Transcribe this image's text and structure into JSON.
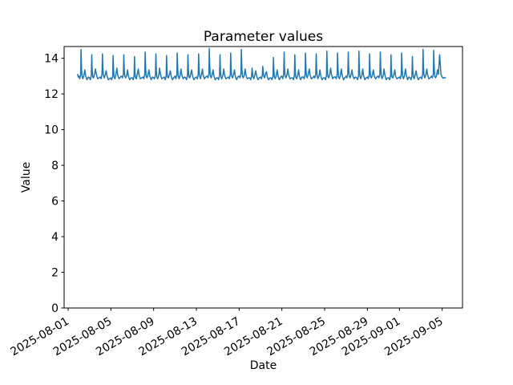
{
  "chart_data": {
    "type": "line",
    "title": "Parameter values",
    "line_color": "#1f77b4",
    "background_color": "#ffffff",
    "grid": false,
    "legend": false,
    "x_axis": {
      "label": "Date",
      "tick_labels": [
        "2025-08-01",
        "2025-08-05",
        "2025-08-09",
        "2025-08-13",
        "2025-08-17",
        "2025-08-21",
        "2025-08-25",
        "2025-08-29",
        "2025-09-01",
        "2025-09-05"
      ],
      "tick_day_offsets": [
        0,
        4,
        8,
        12,
        16,
        20,
        24,
        28,
        31,
        35
      ],
      "lim_days": [
        -0.375,
        36.9
      ],
      "tick_label_rotation_deg": 30
    },
    "y_axis": {
      "label": "Value",
      "ticks": [
        0,
        2,
        4,
        6,
        8,
        10,
        12,
        14
      ],
      "lim": [
        0,
        14.66
      ]
    },
    "series": {
      "t_unit": "days since 2025-08-01 00:00",
      "value_range": [
        12.75,
        14.55
      ],
      "pattern": "daily cycle: sharp morning peak ~14.1-14.55 over ~12.8-13.1 baseline with small evening bump; reduced peaks ~13.5 on days 17-18",
      "lead_points": [
        [
          0.9,
          13.1
        ],
        [
          0.94,
          12.95
        ]
      ],
      "frac_grid": [
        0.0,
        0.08,
        0.17,
        0.21,
        0.25,
        0.3,
        0.38,
        0.48,
        0.56,
        0.64,
        0.76,
        0.88
      ],
      "day_values": [
        [
          13.0,
          12.85,
          13.1,
          14.5,
          13.45,
          13.0,
          12.85,
          13.05,
          13.35,
          13.0,
          12.8,
          12.95
        ],
        [
          12.9,
          12.8,
          13.05,
          14.2,
          13.4,
          12.95,
          12.9,
          13.15,
          13.4,
          13.1,
          12.85,
          12.9
        ],
        [
          12.95,
          12.85,
          13.15,
          14.25,
          13.5,
          13.05,
          12.9,
          13.1,
          13.3,
          13.0,
          12.8,
          12.85
        ],
        [
          12.9,
          12.8,
          13.0,
          14.15,
          13.35,
          12.95,
          12.85,
          13.1,
          13.45,
          13.05,
          12.85,
          12.95
        ],
        [
          13.0,
          12.9,
          13.1,
          14.2,
          13.4,
          13.0,
          12.9,
          13.05,
          13.35,
          13.0,
          12.8,
          12.9
        ],
        [
          12.9,
          12.8,
          13.05,
          14.1,
          13.3,
          12.9,
          12.85,
          13.15,
          13.4,
          13.05,
          12.85,
          12.9
        ],
        [
          12.95,
          12.85,
          13.1,
          14.35,
          13.5,
          13.0,
          12.9,
          13.1,
          13.35,
          13.0,
          12.8,
          12.95
        ],
        [
          12.9,
          12.85,
          13.05,
          14.25,
          13.4,
          12.95,
          12.85,
          13.05,
          13.45,
          13.1,
          12.85,
          12.9
        ],
        [
          12.95,
          12.8,
          13.0,
          14.15,
          13.35,
          12.95,
          12.9,
          13.1,
          13.3,
          13.0,
          12.8,
          12.9
        ],
        [
          13.0,
          12.85,
          13.1,
          14.3,
          13.45,
          13.0,
          12.85,
          13.05,
          13.4,
          13.05,
          12.85,
          12.95
        ],
        [
          12.9,
          12.8,
          13.05,
          14.2,
          13.4,
          12.95,
          12.9,
          13.15,
          13.35,
          13.0,
          12.8,
          12.9
        ],
        [
          12.95,
          12.85,
          13.1,
          14.25,
          13.45,
          13.0,
          12.85,
          13.1,
          13.4,
          13.05,
          12.85,
          12.95
        ],
        [
          13.0,
          12.9,
          13.15,
          14.55,
          13.55,
          13.05,
          12.9,
          13.1,
          13.35,
          13.0,
          12.8,
          12.9
        ],
        [
          12.9,
          12.8,
          13.05,
          14.2,
          13.4,
          12.95,
          12.85,
          13.05,
          13.4,
          13.05,
          12.85,
          12.9
        ],
        [
          12.95,
          12.85,
          13.1,
          14.3,
          13.45,
          13.0,
          12.9,
          13.1,
          13.35,
          13.0,
          12.8,
          12.95
        ],
        [
          13.0,
          12.9,
          13.15,
          14.5,
          13.5,
          13.05,
          12.9,
          13.05,
          13.4,
          13.05,
          12.85,
          12.9
        ],
        [
          12.9,
          12.8,
          13.0,
          13.45,
          13.25,
          12.95,
          12.85,
          13.1,
          13.3,
          13.0,
          12.8,
          12.9
        ],
        [
          12.95,
          12.85,
          13.05,
          13.55,
          13.3,
          13.0,
          12.9,
          13.15,
          13.25,
          12.95,
          12.8,
          12.9
        ],
        [
          12.9,
          12.8,
          13.0,
          14.05,
          13.35,
          12.95,
          12.85,
          13.05,
          13.35,
          13.0,
          12.8,
          12.95
        ],
        [
          13.0,
          12.85,
          13.1,
          14.35,
          13.45,
          13.0,
          12.9,
          13.1,
          13.4,
          13.05,
          12.85,
          12.9
        ],
        [
          12.9,
          12.8,
          13.05,
          14.2,
          13.4,
          12.95,
          12.85,
          13.05,
          13.35,
          13.0,
          12.8,
          12.95
        ],
        [
          12.95,
          12.85,
          13.1,
          14.3,
          13.45,
          13.0,
          12.9,
          13.15,
          13.4,
          13.05,
          12.85,
          12.9
        ],
        [
          13.0,
          12.9,
          13.1,
          14.25,
          13.4,
          13.0,
          12.85,
          13.05,
          13.35,
          13.0,
          12.8,
          12.9
        ],
        [
          12.9,
          12.8,
          13.05,
          14.4,
          13.5,
          13.0,
          12.9,
          13.1,
          13.45,
          13.1,
          12.85,
          12.95
        ],
        [
          12.95,
          12.85,
          13.1,
          14.3,
          13.45,
          12.95,
          12.85,
          13.05,
          13.4,
          13.05,
          12.8,
          12.9
        ],
        [
          13.0,
          12.9,
          13.15,
          14.35,
          13.5,
          13.0,
          12.9,
          13.1,
          13.35,
          13.0,
          12.85,
          12.95
        ],
        [
          12.9,
          12.8,
          13.05,
          14.4,
          13.45,
          13.0,
          12.85,
          13.05,
          13.4,
          13.05,
          12.8,
          12.9
        ],
        [
          12.95,
          12.85,
          13.1,
          14.25,
          13.4,
          12.95,
          12.9,
          13.1,
          13.35,
          13.0,
          12.85,
          12.95
        ],
        [
          13.0,
          12.9,
          13.1,
          14.35,
          13.5,
          13.0,
          12.85,
          13.05,
          13.4,
          13.05,
          12.8,
          12.9
        ],
        [
          12.9,
          12.8,
          13.05,
          14.2,
          13.4,
          12.95,
          12.9,
          13.1,
          13.35,
          13.0,
          12.85,
          12.9
        ],
        [
          12.95,
          12.85,
          13.1,
          14.3,
          13.45,
          13.0,
          12.85,
          13.05,
          13.4,
          13.05,
          12.8,
          12.95
        ],
        [
          12.9,
          12.8,
          13.0,
          14.1,
          13.35,
          12.95,
          12.85,
          13.1,
          13.3,
          13.0,
          12.8,
          12.9
        ],
        [
          12.95,
          12.85,
          13.1,
          14.5,
          13.5,
          13.05,
          12.9,
          13.1,
          13.4,
          13.05,
          12.85,
          12.9
        ],
        [
          13.0,
          12.9,
          13.15,
          14.45,
          13.5,
          13.0,
          12.9,
          13.05,
          13.35,
          13.1,
          14.2,
          13.1
        ]
      ],
      "tail_points": [
        [
          35.0,
          12.95
        ],
        [
          35.08,
          12.88
        ],
        [
          35.18,
          12.92
        ],
        [
          35.3,
          12.9
        ]
      ]
    }
  }
}
